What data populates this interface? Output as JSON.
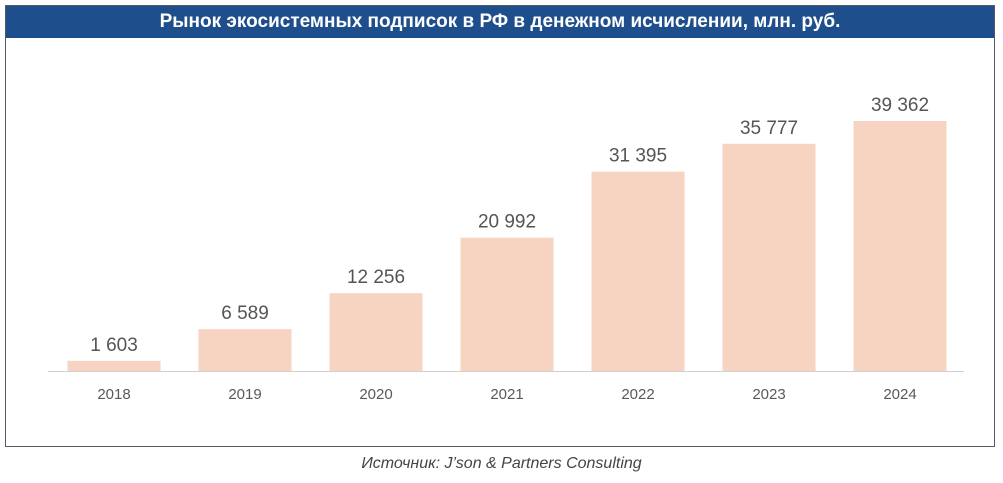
{
  "chart_data": {
    "type": "bar",
    "title": "Рынок экосистемных подписок в РФ в денежном исчислении, млн. руб.",
    "categories": [
      "2018",
      "2019",
      "2020",
      "2021",
      "2022",
      "2023",
      "2024"
    ],
    "values": [
      1603,
      6589,
      12256,
      20992,
      31395,
      35777,
      39362
    ],
    "value_labels": [
      "1 603",
      "6 589",
      "12 256",
      "20 992",
      "31 395",
      "35 777",
      "39 362"
    ],
    "ylim": [
      0,
      42000
    ],
    "grid": false,
    "legend": "none",
    "bar_color": "#f7d3c2",
    "title_bg_color": "#1f4e8c"
  },
  "source": "Источник: J’son & Partners Consulting"
}
